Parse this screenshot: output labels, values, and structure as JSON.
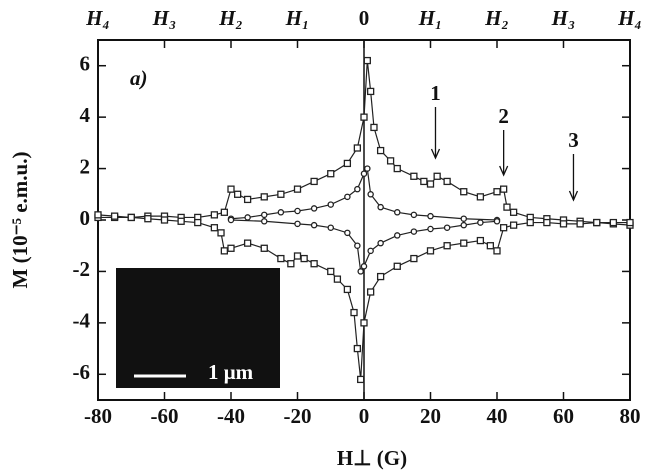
{
  "chart_data": {
    "type": "line",
    "xlabel": "H⊥ (G)",
    "ylabel": "M (10⁻⁵ e.m.u.)",
    "xlim": [
      -80,
      80
    ],
    "ylim": [
      -7,
      7
    ],
    "xticks": [
      -80,
      -60,
      -40,
      -20,
      0,
      20,
      40,
      60,
      80
    ],
    "yticks": [
      -6,
      -4,
      -2,
      0,
      2,
      4,
      6
    ],
    "top_xticks": [
      {
        "value": -80,
        "label": "H₄"
      },
      {
        "value": -60,
        "label": "H₃"
      },
      {
        "value": -40,
        "label": "H₂"
      },
      {
        "value": -20,
        "label": "H₁"
      },
      0,
      {
        "value": 20,
        "label": "H₁"
      },
      {
        "value": 40,
        "label": "H₂"
      },
      {
        "value": 60,
        "label": "H₃"
      },
      {
        "value": 80,
        "label": "H₄"
      }
    ],
    "annotations": [
      "a)",
      "1",
      "2",
      "3",
      "1 μm"
    ],
    "series": [
      {
        "marker": "square",
        "color": "#222",
        "x": [
          -80,
          -75,
          -70,
          -65,
          -60,
          -55,
          -50,
          -45,
          -42,
          -40,
          -38,
          -35,
          -30,
          -25,
          -20,
          -15,
          -10,
          -5,
          -2,
          0,
          1,
          2,
          3,
          5,
          8,
          10,
          15,
          18,
          20,
          22,
          25,
          30,
          35,
          40,
          42,
          43,
          45,
          50,
          55,
          60,
          65,
          70,
          75,
          80
        ],
        "values": [
          0.1,
          0.1,
          0.1,
          0.15,
          0.15,
          0.1,
          0.1,
          0.2,
          0.3,
          1.2,
          1.0,
          0.8,
          0.9,
          1.0,
          1.2,
          1.5,
          1.8,
          2.2,
          2.8,
          4.0,
          6.2,
          5.0,
          3.6,
          2.7,
          2.3,
          2.0,
          1.7,
          1.5,
          1.4,
          1.7,
          1.5,
          1.1,
          0.9,
          1.1,
          1.2,
          0.5,
          0.3,
          0.1,
          0.05,
          0.0,
          -0.05,
          -0.1,
          -0.15,
          -0.2
        ]
      },
      {
        "marker": "square",
        "color": "#222",
        "x": [
          80,
          75,
          70,
          65,
          60,
          55,
          50,
          45,
          42,
          40,
          38,
          35,
          30,
          25,
          20,
          15,
          10,
          5,
          2,
          0,
          -1,
          -2,
          -3,
          -5,
          -8,
          -10,
          -15,
          -18,
          -20,
          -22,
          -25,
          -30,
          -35,
          -40,
          -42,
          -43,
          -45,
          -50,
          -55,
          -60,
          -65,
          -70,
          -75,
          -80
        ],
        "values": [
          -0.1,
          -0.1,
          -0.1,
          -0.15,
          -0.15,
          -0.1,
          -0.1,
          -0.2,
          -0.3,
          -1.2,
          -1.0,
          -0.8,
          -0.9,
          -1.0,
          -1.2,
          -1.5,
          -1.8,
          -2.2,
          -2.8,
          -4.0,
          -6.2,
          -5.0,
          -3.6,
          -2.7,
          -2.3,
          -2.0,
          -1.7,
          -1.5,
          -1.4,
          -1.7,
          -1.5,
          -1.1,
          -0.9,
          -1.1,
          -1.2,
          -0.5,
          -0.3,
          -0.1,
          -0.05,
          0.0,
          0.05,
          0.1,
          0.15,
          0.2
        ]
      },
      {
        "marker": "circle",
        "color": "#222",
        "x": [
          -40,
          -35,
          -30,
          -25,
          -20,
          -15,
          -10,
          -5,
          -2,
          0,
          1,
          2,
          5,
          10,
          15,
          20,
          30,
          40
        ],
        "values": [
          0.05,
          0.1,
          0.2,
          0.3,
          0.35,
          0.45,
          0.6,
          0.9,
          1.2,
          1.8,
          2.0,
          1.0,
          0.5,
          0.3,
          0.2,
          0.15,
          0.05,
          0.0
        ]
      },
      {
        "marker": "circle",
        "color": "#222",
        "x": [
          40,
          35,
          30,
          25,
          20,
          15,
          10,
          5,
          2,
          0,
          -1,
          -2,
          -5,
          -10,
          -15,
          -20,
          -30,
          -40
        ],
        "values": [
          -0.05,
          -0.1,
          -0.2,
          -0.3,
          -0.35,
          -0.45,
          -0.6,
          -0.9,
          -1.2,
          -1.8,
          -2.0,
          -1.0,
          -0.5,
          -0.3,
          -0.2,
          -0.15,
          -0.05,
          0.0
        ]
      }
    ]
  }
}
